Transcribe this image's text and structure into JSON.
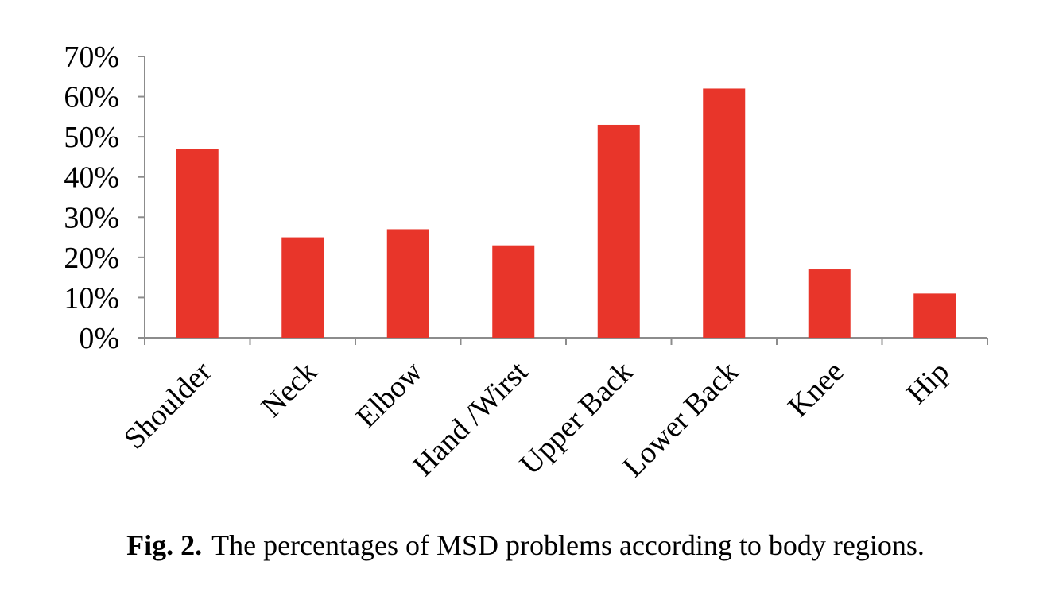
{
  "chart_data": {
    "type": "bar",
    "categories": [
      "Shoulder",
      "Neck",
      "Elbow",
      "Hand /Wirst",
      "Upper Back",
      "Lower Back",
      "Knee",
      "Hip"
    ],
    "values": [
      47,
      25,
      27,
      23,
      53,
      62,
      17,
      11
    ],
    "ylim": [
      0,
      70
    ],
    "yticks": [
      "0%",
      "10%",
      "20%",
      "30%",
      "40%",
      "50%",
      "60%",
      "70%"
    ],
    "grid": false,
    "bar_color": "#e8352a"
  },
  "caption": {
    "label": "Fig. 2.",
    "text": "The percentages of MSD problems according to body regions."
  }
}
